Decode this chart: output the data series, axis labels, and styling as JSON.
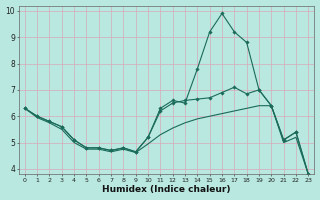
{
  "xlabel": "Humidex (Indice chaleur)",
  "background_color": "#b8e8e0",
  "grid_color": "#d8a8b8",
  "line_color": "#1a6b5a",
  "x": [
    0,
    1,
    2,
    3,
    4,
    5,
    6,
    7,
    8,
    9,
    10,
    11,
    12,
    13,
    14,
    15,
    16,
    17,
    18,
    19,
    20,
    21,
    22,
    23
  ],
  "line1": [
    6.3,
    6.0,
    5.8,
    5.6,
    5.1,
    4.8,
    4.8,
    4.7,
    4.8,
    4.65,
    5.2,
    6.3,
    6.6,
    6.5,
    7.8,
    9.2,
    9.9,
    9.2,
    8.8,
    7.0,
    6.4,
    5.1,
    5.4,
    3.8
  ],
  "line2": [
    6.3,
    6.0,
    5.8,
    5.6,
    5.1,
    4.8,
    4.8,
    4.7,
    4.8,
    4.65,
    5.2,
    6.2,
    6.5,
    6.6,
    6.65,
    6.7,
    6.9,
    7.1,
    6.85,
    7.0,
    6.4,
    5.1,
    5.4,
    3.8
  ],
  "line3": [
    6.3,
    5.95,
    5.75,
    5.5,
    5.0,
    4.75,
    4.75,
    4.65,
    4.75,
    4.62,
    4.95,
    5.3,
    5.55,
    5.75,
    5.9,
    6.0,
    6.1,
    6.2,
    6.3,
    6.4,
    6.4,
    5.0,
    5.2,
    3.8
  ],
  "ylim": [
    3.8,
    10.2
  ],
  "xlim": [
    -0.5,
    23.5
  ],
  "yticks": [
    4,
    5,
    6,
    7,
    8,
    9,
    10
  ],
  "xticks": [
    0,
    1,
    2,
    3,
    4,
    5,
    6,
    7,
    8,
    9,
    10,
    11,
    12,
    13,
    14,
    15,
    16,
    17,
    18,
    19,
    20,
    21,
    22,
    23
  ],
  "xtick_labels": [
    "0",
    "1",
    "2",
    "3",
    "4",
    "5",
    "6",
    "7",
    "8",
    "9",
    "10",
    "11",
    "12",
    "13",
    "14",
    "15",
    "16",
    "17",
    "18",
    "19",
    "20",
    "21",
    "22",
    "23"
  ]
}
